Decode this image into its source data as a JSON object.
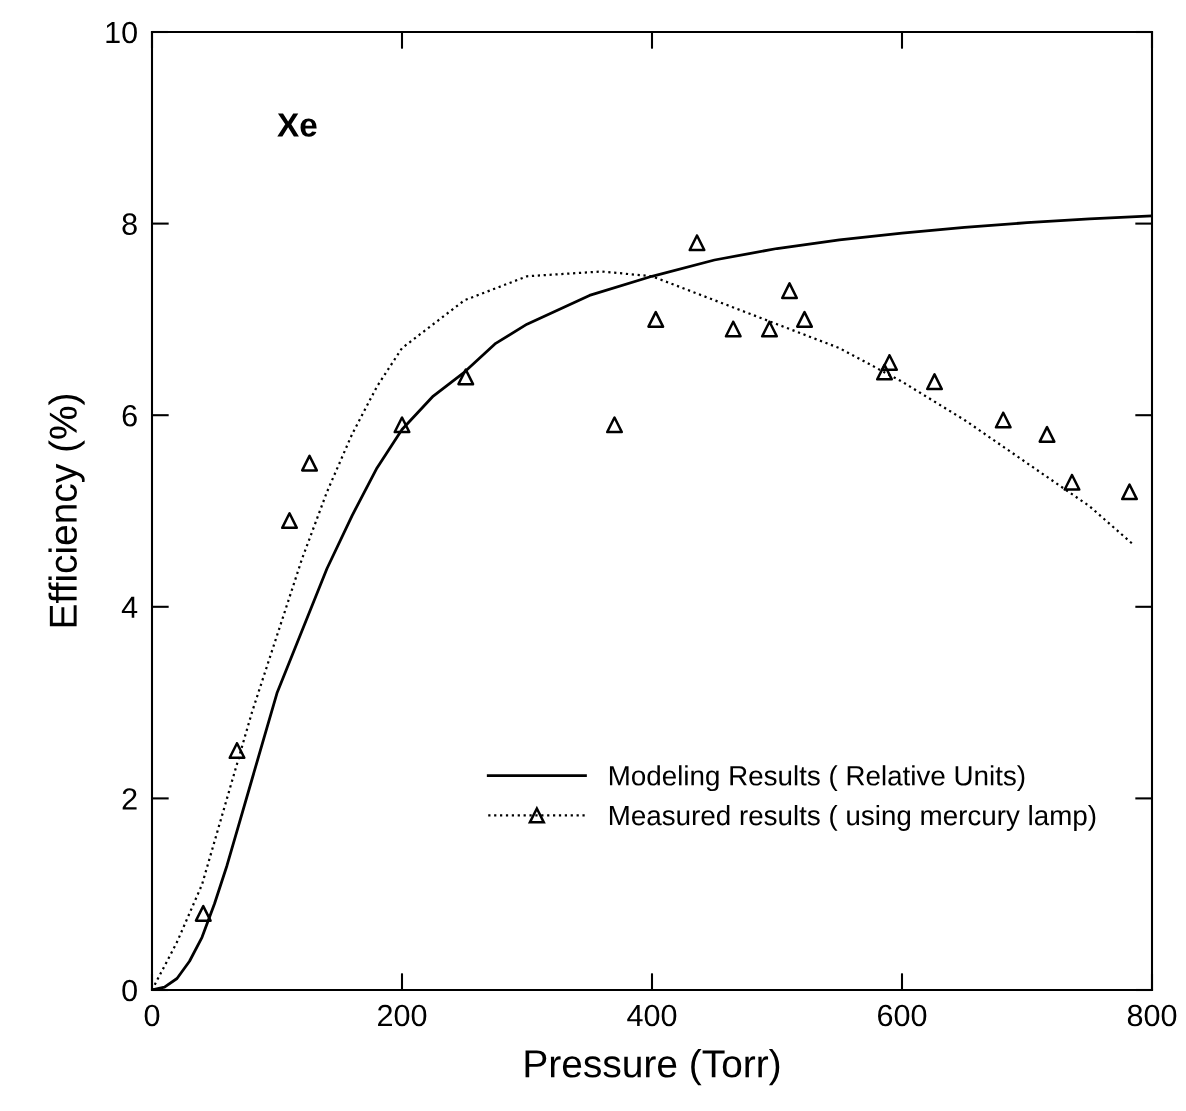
{
  "chart_data": {
    "type": "line",
    "xlabel": "Pressure (Torr)",
    "ylabel": "Efficiency (%)",
    "xlim": [
      0,
      800
    ],
    "ylim": [
      0,
      10
    ],
    "xticks": [
      0,
      200,
      400,
      600,
      800
    ],
    "yticks": [
      0,
      2,
      4,
      6,
      8,
      10
    ],
    "grid": false,
    "legend": "lower right",
    "annotations": [
      "Xe"
    ],
    "series": [
      {
        "name": "Modeling Results ( Relative Units)",
        "line_style": "solid",
        "marker": "none",
        "color": "#000000",
        "x": [
          0,
          10,
          20,
          30,
          40,
          50,
          60,
          70,
          80,
          90,
          100,
          120,
          140,
          160,
          180,
          200,
          225,
          250,
          275,
          300,
          350,
          400,
          450,
          500,
          550,
          600,
          650,
          700,
          750,
          800
        ],
        "values": [
          0,
          0.03,
          0.12,
          0.3,
          0.55,
          0.9,
          1.3,
          1.75,
          2.2,
          2.65,
          3.1,
          3.75,
          4.4,
          4.95,
          5.45,
          5.85,
          6.2,
          6.45,
          6.75,
          6.95,
          7.25,
          7.45,
          7.62,
          7.74,
          7.83,
          7.9,
          7.96,
          8.01,
          8.05,
          8.08
        ]
      },
      {
        "name": "Measured results ( using mercury lamp)",
        "type": "scatter",
        "marker": "triangle",
        "color": "#000000",
        "x": [
          41,
          68,
          110,
          126,
          200,
          251,
          370,
          403,
          436,
          465,
          494,
          510,
          522,
          586,
          590,
          626,
          681,
          716,
          736,
          782
        ],
        "values": [
          0.8,
          2.5,
          4.9,
          5.5,
          5.9,
          6.4,
          5.9,
          7.0,
          7.8,
          6.9,
          6.9,
          7.3,
          7.0,
          6.45,
          6.55,
          6.35,
          5.95,
          5.8,
          5.3,
          5.2
        ]
      },
      {
        "line_style": "dotted",
        "marker": "none",
        "color": "#000000",
        "x": [
          0,
          20,
          40,
          60,
          80,
          100,
          120,
          140,
          160,
          180,
          200,
          250,
          300,
          360,
          400,
          450,
          500,
          550,
          600,
          650,
          700,
          750,
          785
        ],
        "values": [
          0,
          0.5,
          1.1,
          2.0,
          2.9,
          3.7,
          4.5,
          5.2,
          5.8,
          6.3,
          6.7,
          7.2,
          7.45,
          7.5,
          7.45,
          7.2,
          6.95,
          6.7,
          6.35,
          5.95,
          5.5,
          5.05,
          4.65
        ]
      }
    ]
  }
}
